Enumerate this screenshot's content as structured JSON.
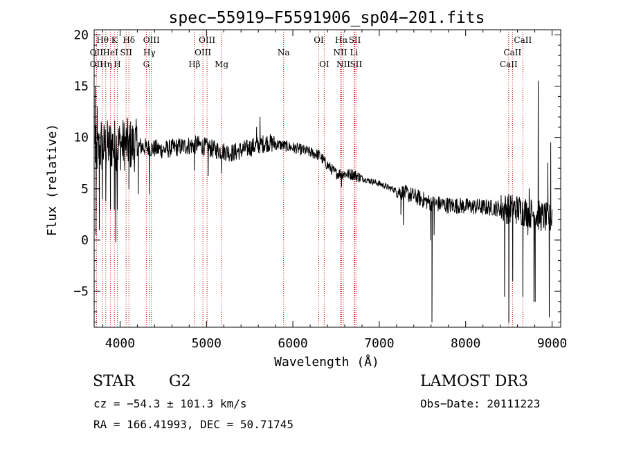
{
  "chart_data": {
    "type": "line",
    "title": "spec−55919−F5591906_sp04−201.fits",
    "xlabel": "Wavelength (Å)",
    "ylabel": "Flux (relative)",
    "xlim": [
      3700,
      9100
    ],
    "ylim": [
      -8.5,
      20.5
    ],
    "xticks": [
      4000,
      5000,
      6000,
      7000,
      8000,
      9000
    ],
    "yticks": [
      -5,
      0,
      5,
      10,
      15,
      20
    ],
    "ytick_labels": [
      "−5",
      "0",
      "5",
      "10",
      "15",
      "20"
    ],
    "line_color": "#000000",
    "marker_color": "#cc0000",
    "spectrum_envelope": {
      "x": [
        3700,
        3800,
        3900,
        4000,
        4100,
        4200,
        4300,
        4400,
        4500,
        4700,
        4900,
        5100,
        5300,
        5500,
        5700,
        5900,
        6100,
        6300,
        6400,
        6500,
        6700,
        6800,
        7000,
        7200,
        7400,
        7600,
        7800,
        8000,
        8200,
        8400,
        8600,
        8800,
        9000
      ],
      "y": [
        8.5,
        9.0,
        9.3,
        9.3,
        9.3,
        9.2,
        9.0,
        8.9,
        8.8,
        9.1,
        9.3,
        8.8,
        8.5,
        9.0,
        9.5,
        9.2,
        8.8,
        8.3,
        7.3,
        6.5,
        6.4,
        6.0,
        5.5,
        4.8,
        4.3,
        3.6,
        3.4,
        3.3,
        3.2,
        3.1,
        3.0,
        2.5,
        2.0
      ]
    },
    "spectrum_features": [
      {
        "x": 3712,
        "y": 15.0
      },
      {
        "x": 3722,
        "y": 0.5
      },
      {
        "x": 3735,
        "y": 13.0
      },
      {
        "x": 3760,
        "y": 1.0
      },
      {
        "x": 3782,
        "y": 11.5
      },
      {
        "x": 3795,
        "y": 4.0
      },
      {
        "x": 3835,
        "y": 3.8
      },
      {
        "x": 3889,
        "y": 3.0
      },
      {
        "x": 3934,
        "y": 3.0
      },
      {
        "x": 3950,
        "y": -0.2
      },
      {
        "x": 3968,
        "y": 3.0
      },
      {
        "x": 4102,
        "y": 5.0
      },
      {
        "x": 4210,
        "y": 4.5
      },
      {
        "x": 4340,
        "y": 4.5
      },
      {
        "x": 4861,
        "y": 6.8
      },
      {
        "x": 5020,
        "y": 6.3
      },
      {
        "x": 5175,
        "y": 6.5
      },
      {
        "x": 5580,
        "y": 11.0
      },
      {
        "x": 5620,
        "y": 12.0
      },
      {
        "x": 6563,
        "y": 5.2
      },
      {
        "x": 7250,
        "y": 2.5
      },
      {
        "x": 7280,
        "y": 1.5
      },
      {
        "x": 7595,
        "y": 0.0
      },
      {
        "x": 7610,
        "y": -8.0
      },
      {
        "x": 7635,
        "y": 0.5
      },
      {
        "x": 8450,
        "y": -5.5
      },
      {
        "x": 8500,
        "y": -8.0
      },
      {
        "x": 8545,
        "y": -4.0
      },
      {
        "x": 8590,
        "y": 4.0
      },
      {
        "x": 8662,
        "y": -5.5
      },
      {
        "x": 8720,
        "y": 0.5
      },
      {
        "x": 8735,
        "y": 5.0
      },
      {
        "x": 8790,
        "y": -6.0
      },
      {
        "x": 8805,
        "y": -6.0
      },
      {
        "x": 8840,
        "y": 15.5
      },
      {
        "x": 8860,
        "y": 2.0
      },
      {
        "x": 8890,
        "y": 3.0
      },
      {
        "x": 8950,
        "y": 7.5
      },
      {
        "x": 8968,
        "y": -7.5
      },
      {
        "x": 8985,
        "y": 9.5
      },
      {
        "x": 9000,
        "y": 3.0
      }
    ],
    "line_markers": [
      {
        "label": "Hθ",
        "wavelength": 3798,
        "row": 1
      },
      {
        "label": "OII",
        "wavelength": 3727,
        "row": 2
      },
      {
        "label": "OII",
        "wavelength": 3727,
        "row": 3
      },
      {
        "label": "K",
        "wavelength": 3934,
        "row": 1
      },
      {
        "label": "HeI",
        "wavelength": 3889,
        "row": 2
      },
      {
        "label": "Hη",
        "wavelength": 3835,
        "row": 3
      },
      {
        "label": "SII",
        "wavelength": 4070,
        "row": 2
      },
      {
        "label": "H",
        "wavelength": 3968,
        "row": 3
      },
      {
        "label": "Hδ",
        "wavelength": 4102,
        "row": 1
      },
      {
        "label": "OIII",
        "wavelength": 4363,
        "row": 1
      },
      {
        "label": "Hγ",
        "wavelength": 4340,
        "row": 2
      },
      {
        "label": "G",
        "wavelength": 4304,
        "row": 3
      },
      {
        "label": "OIII",
        "wavelength": 5007,
        "row": 1
      },
      {
        "label": "OIII",
        "wavelength": 4959,
        "row": 2
      },
      {
        "label": "Hβ",
        "wavelength": 4861,
        "row": 3
      },
      {
        "label": "Mg",
        "wavelength": 5175,
        "row": 3
      },
      {
        "label": "Na",
        "wavelength": 5893,
        "row": 2
      },
      {
        "label": "OI",
        "wavelength": 6300,
        "row": 1
      },
      {
        "label": "OI",
        "wavelength": 6363,
        "row": 3
      },
      {
        "label": "Hα",
        "wavelength": 6563,
        "row": 1
      },
      {
        "label": "NII",
        "wavelength": 6548,
        "row": 2
      },
      {
        "label": "NII",
        "wavelength": 6584,
        "row": 3
      },
      {
        "label": "SII",
        "wavelength": 6717,
        "row": 1
      },
      {
        "label": "Li",
        "wavelength": 6708,
        "row": 2
      },
      {
        "label": "SII",
        "wavelength": 6731,
        "row": 3
      },
      {
        "label": "CaII",
        "wavelength": 8662,
        "row": 1
      },
      {
        "label": "CaII",
        "wavelength": 8542,
        "row": 2
      },
      {
        "label": "CaII",
        "wavelength": 8498,
        "row": 3
      }
    ]
  },
  "footer": {
    "object_class": "STAR",
    "subclass": "G2",
    "velocity": "cz = −54.3 ± 101.3 km/s",
    "coordinates": "RA = 166.41993, DEC =  50.71745",
    "survey": "LAMOST DR3",
    "obs_date": "Obs−Date: 20111223"
  }
}
